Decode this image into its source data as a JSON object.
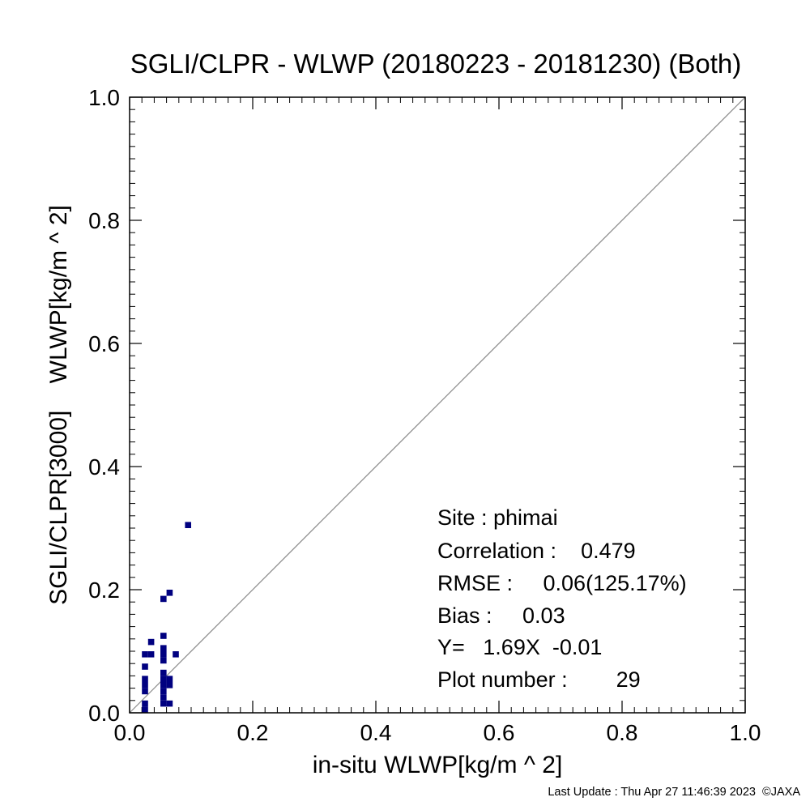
{
  "chart_data": {
    "type": "scatter",
    "title": "SGLI/CLPR - WLWP (20180223 - 20181230) (Both)",
    "xlabel": "in-situ WLWP[kg/m ^ 2]",
    "ylabel": "SGLI/CLPR[3000]    WLWP[kg/m ^ 2]",
    "xlim": [
      0.0,
      1.0
    ],
    "ylim": [
      0.0,
      1.0
    ],
    "x_ticks": [
      "0.0",
      "0.2",
      "0.4",
      "0.6",
      "0.8",
      "1.0"
    ],
    "y_ticks": [
      "0.0",
      "0.2",
      "0.4",
      "0.6",
      "0.8",
      "1.0"
    ],
    "grid": false,
    "point_color": "#000080",
    "reference_line": "1:1 diagonal",
    "points": [
      {
        "x": 0.025,
        "y": 0.005
      },
      {
        "x": 0.025,
        "y": 0.015
      },
      {
        "x": 0.025,
        "y": 0.035
      },
      {
        "x": 0.025,
        "y": 0.045
      },
      {
        "x": 0.025,
        "y": 0.055
      },
      {
        "x": 0.025,
        "y": 0.075
      },
      {
        "x": 0.025,
        "y": 0.095
      },
      {
        "x": 0.035,
        "y": 0.095
      },
      {
        "x": 0.035,
        "y": 0.115
      },
      {
        "x": 0.055,
        "y": 0.015
      },
      {
        "x": 0.055,
        "y": 0.025
      },
      {
        "x": 0.055,
        "y": 0.035
      },
      {
        "x": 0.055,
        "y": 0.045
      },
      {
        "x": 0.055,
        "y": 0.055
      },
      {
        "x": 0.055,
        "y": 0.065
      },
      {
        "x": 0.055,
        "y": 0.085
      },
      {
        "x": 0.055,
        "y": 0.095
      },
      {
        "x": 0.055,
        "y": 0.105
      },
      {
        "x": 0.055,
        "y": 0.125
      },
      {
        "x": 0.055,
        "y": 0.185
      },
      {
        "x": 0.065,
        "y": 0.015
      },
      {
        "x": 0.065,
        "y": 0.045
      },
      {
        "x": 0.065,
        "y": 0.055
      },
      {
        "x": 0.065,
        "y": 0.195
      },
      {
        "x": 0.075,
        "y": 0.095
      },
      {
        "x": 0.095,
        "y": 0.305
      }
    ]
  },
  "stats": {
    "site": "Site : phimai",
    "correlation": "Correlation :    0.479",
    "rmse": "RMSE :     0.06(125.17%)",
    "bias": "Bias :     0.03",
    "equation": "Y=   1.69X  -0.01",
    "plot_number": "Plot number :        29"
  },
  "footer": "Last Update : Thu Apr 27 11:46:39 2023  ©JAXA"
}
